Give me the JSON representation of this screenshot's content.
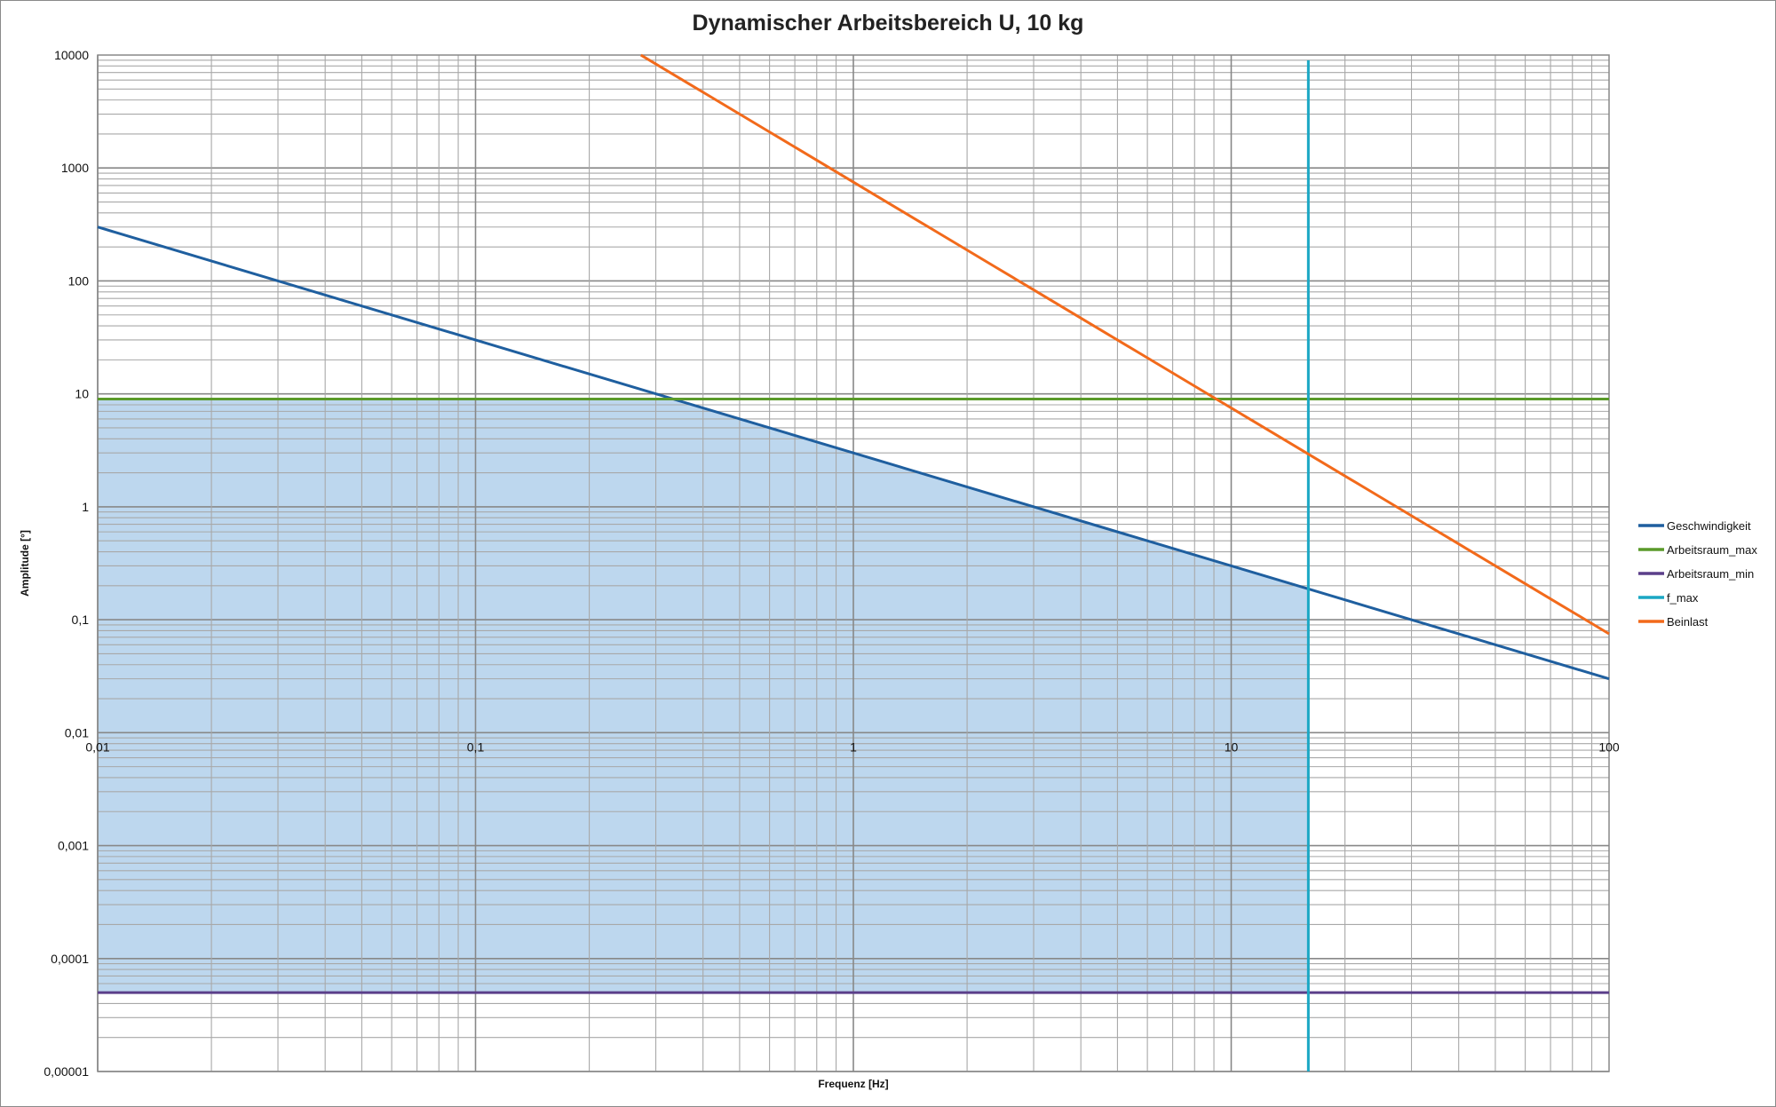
{
  "chart_data": {
    "type": "line",
    "title": "Dynamischer Arbeitsbereich U, 10 kg",
    "xlabel": "Frequenz [Hz]",
    "ylabel": "Amplitude [°]",
    "x_scale": "log",
    "y_scale": "log",
    "xlim": [
      0.01,
      100
    ],
    "ylim": [
      1e-05,
      10000
    ],
    "x_tick_labels": [
      "0,01",
      "0,1",
      "1",
      "10",
      "100"
    ],
    "y_tick_labels": [
      "10000",
      "1000",
      "100",
      "10",
      "1",
      "0,1",
      "0,01",
      "0,001",
      "0,0001",
      "0,00001"
    ],
    "grid": true,
    "legend_position": "right",
    "shaded_region": {
      "color": "#bdd7ee",
      "description_bounds": "between Arbeitsraum_min and min(Geschwindigkeit, Arbeitsraum_max), up to f_max"
    },
    "series": [
      {
        "name": "Geschwindigkeit",
        "color": "#1f5f9f",
        "x": [
          0.01,
          100
        ],
        "y": [
          300,
          0.03
        ]
      },
      {
        "name": "Arbeitsraum_max",
        "color": "#5a9a2a",
        "x": [
          0.01,
          100
        ],
        "y": [
          9,
          9
        ]
      },
      {
        "name": "Arbeitsraum_min",
        "color": "#5b3f8a",
        "x": [
          0.01,
          100
        ],
        "y": [
          5e-05,
          5e-05
        ]
      },
      {
        "name": "f_max",
        "color": "#1aa7c4",
        "x": [
          16,
          16
        ],
        "y": [
          1e-05,
          9000
        ]
      },
      {
        "name": "Beinlast",
        "color": "#f26a1b",
        "x": [
          0.274,
          100
        ],
        "y": [
          10000,
          0.075
        ]
      }
    ]
  }
}
